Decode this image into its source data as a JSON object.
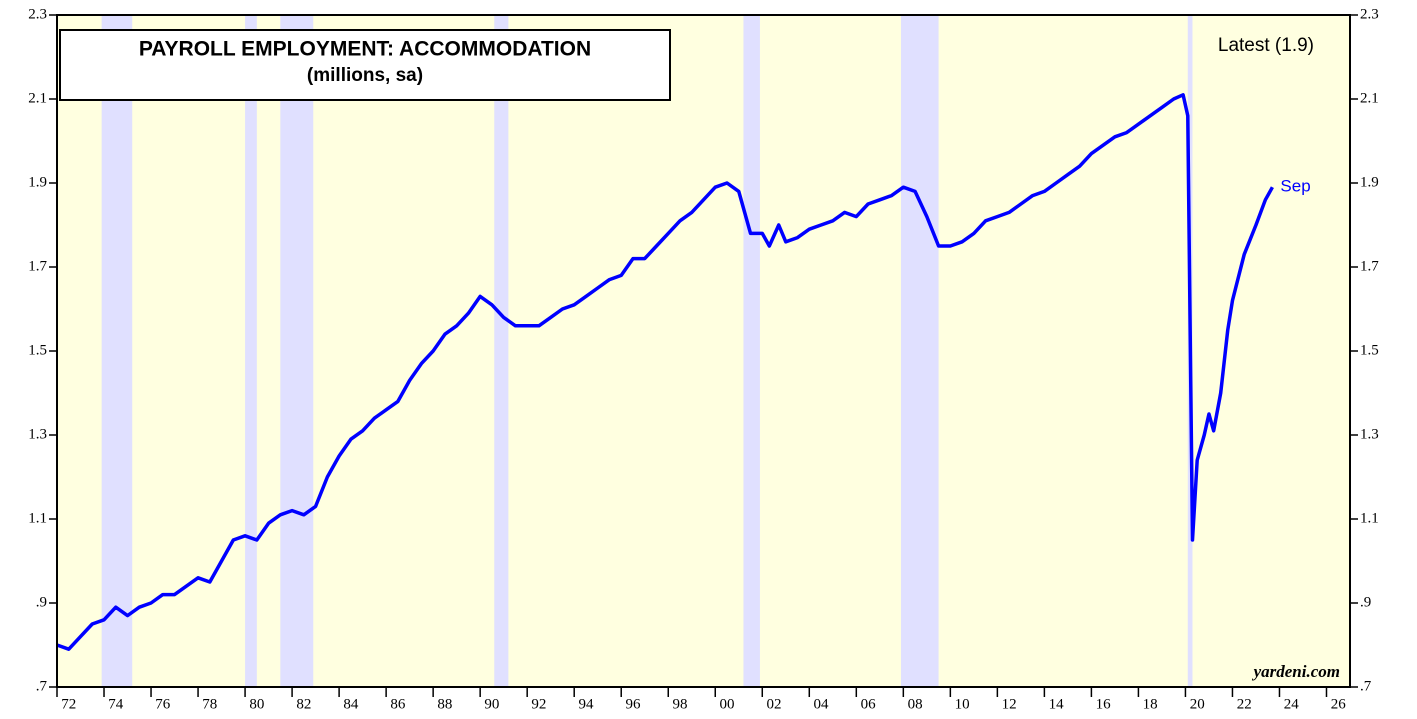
{
  "chart_data": {
    "type": "line",
    "title": "PAYROLL EMPLOYMENT: ACCOMMODATION",
    "subtitle": "(millions, sa)",
    "annotations": {
      "latest": "Latest (1.9)",
      "end_label": "Sep",
      "source": "yardeni.com"
    },
    "background": "#ffffe0",
    "recession_color": "#e0e0ff",
    "recessions": [
      [
        1973.9,
        1975.2
      ],
      [
        1980.0,
        1980.5
      ],
      [
        1981.5,
        1982.9
      ],
      [
        1990.6,
        1991.2
      ],
      [
        2001.2,
        2001.9
      ],
      [
        2007.9,
        2009.5
      ],
      [
        2020.1,
        2020.3
      ]
    ],
    "xlim": [
      1972,
      2027
    ],
    "xticks": [
      {
        "value": 1972,
        "label": "72"
      },
      {
        "value": 1974,
        "label": "74"
      },
      {
        "value": 1976,
        "label": "76"
      },
      {
        "value": 1978,
        "label": "78"
      },
      {
        "value": 1980,
        "label": "80"
      },
      {
        "value": 1982,
        "label": "82"
      },
      {
        "value": 1984,
        "label": "84"
      },
      {
        "value": 1986,
        "label": "86"
      },
      {
        "value": 1988,
        "label": "88"
      },
      {
        "value": 1990,
        "label": "90"
      },
      {
        "value": 1992,
        "label": "92"
      },
      {
        "value": 1994,
        "label": "94"
      },
      {
        "value": 1996,
        "label": "96"
      },
      {
        "value": 1998,
        "label": "98"
      },
      {
        "value": 2000,
        "label": "00"
      },
      {
        "value": 2002,
        "label": "02"
      },
      {
        "value": 2004,
        "label": "04"
      },
      {
        "value": 2006,
        "label": "06"
      },
      {
        "value": 2008,
        "label": "08"
      },
      {
        "value": 2010,
        "label": "10"
      },
      {
        "value": 2012,
        "label": "12"
      },
      {
        "value": 2014,
        "label": "14"
      },
      {
        "value": 2016,
        "label": "16"
      },
      {
        "value": 2018,
        "label": "18"
      },
      {
        "value": 2020,
        "label": "20"
      },
      {
        "value": 2022,
        "label": "22"
      },
      {
        "value": 2024,
        "label": "24"
      },
      {
        "value": 2026,
        "label": "26"
      }
    ],
    "ylim": [
      0.7,
      2.3
    ],
    "yticks": [
      {
        "value": 0.7,
        "label": ".7"
      },
      {
        "value": 0.9,
        "label": ".9"
      },
      1.1,
      1.3,
      1.5,
      1.7,
      1.9,
      2.1,
      2.3
    ],
    "x": [
      1972.0,
      1972.5,
      1973.0,
      1973.5,
      1974.0,
      1974.5,
      1975.0,
      1975.5,
      1976.0,
      1976.5,
      1977.0,
      1977.5,
      1978.0,
      1978.5,
      1979.0,
      1979.5,
      1980.0,
      1980.5,
      1981.0,
      1981.5,
      1982.0,
      1982.5,
      1983.0,
      1983.5,
      1984.0,
      1984.5,
      1985.0,
      1985.5,
      1986.0,
      1986.5,
      1987.0,
      1987.5,
      1988.0,
      1988.5,
      1989.0,
      1989.5,
      1990.0,
      1990.5,
      1991.0,
      1991.5,
      1992.0,
      1992.5,
      1993.0,
      1993.5,
      1994.0,
      1994.5,
      1995.0,
      1995.5,
      1996.0,
      1996.5,
      1997.0,
      1997.5,
      1998.0,
      1998.5,
      1999.0,
      1999.5,
      2000.0,
      2000.5,
      2001.0,
      2001.5,
      2002.0,
      2002.3,
      2002.7,
      2003.0,
      2003.5,
      2004.0,
      2004.5,
      2005.0,
      2005.5,
      2006.0,
      2006.5,
      2007.0,
      2007.5,
      2008.0,
      2008.5,
      2009.0,
      2009.5,
      2010.0,
      2010.5,
      2011.0,
      2011.5,
      2012.0,
      2012.5,
      2013.0,
      2013.5,
      2014.0,
      2014.5,
      2015.0,
      2015.5,
      2016.0,
      2016.5,
      2017.0,
      2017.5,
      2018.0,
      2018.5,
      2019.0,
      2019.5,
      2019.9,
      2020.1,
      2020.3,
      2020.5,
      2020.8,
      2021.0,
      2021.2,
      2021.5,
      2021.8,
      2022.0,
      2022.5,
      2023.0,
      2023.4,
      2023.7
    ],
    "series": [
      {
        "name": "Accommodation",
        "color": "#0000ff",
        "values": [
          0.8,
          0.79,
          0.82,
          0.85,
          0.86,
          0.89,
          0.87,
          0.89,
          0.9,
          0.92,
          0.92,
          0.94,
          0.96,
          0.95,
          1.0,
          1.05,
          1.06,
          1.05,
          1.09,
          1.11,
          1.12,
          1.11,
          1.13,
          1.2,
          1.25,
          1.29,
          1.31,
          1.34,
          1.36,
          1.38,
          1.43,
          1.47,
          1.5,
          1.54,
          1.56,
          1.59,
          1.63,
          1.61,
          1.58,
          1.56,
          1.56,
          1.56,
          1.58,
          1.6,
          1.61,
          1.63,
          1.65,
          1.67,
          1.68,
          1.72,
          1.72,
          1.75,
          1.78,
          1.81,
          1.83,
          1.86,
          1.89,
          1.9,
          1.88,
          1.78,
          1.78,
          1.75,
          1.8,
          1.76,
          1.77,
          1.79,
          1.8,
          1.81,
          1.83,
          1.82,
          1.85,
          1.86,
          1.87,
          1.89,
          1.88,
          1.82,
          1.75,
          1.75,
          1.76,
          1.78,
          1.81,
          1.82,
          1.83,
          1.85,
          1.87,
          1.88,
          1.9,
          1.92,
          1.94,
          1.97,
          1.99,
          2.01,
          2.02,
          2.04,
          2.06,
          2.08,
          2.1,
          2.11,
          2.06,
          1.05,
          1.24,
          1.3,
          1.35,
          1.31,
          1.4,
          1.55,
          1.62,
          1.73,
          1.8,
          1.86,
          1.89
        ]
      }
    ]
  }
}
